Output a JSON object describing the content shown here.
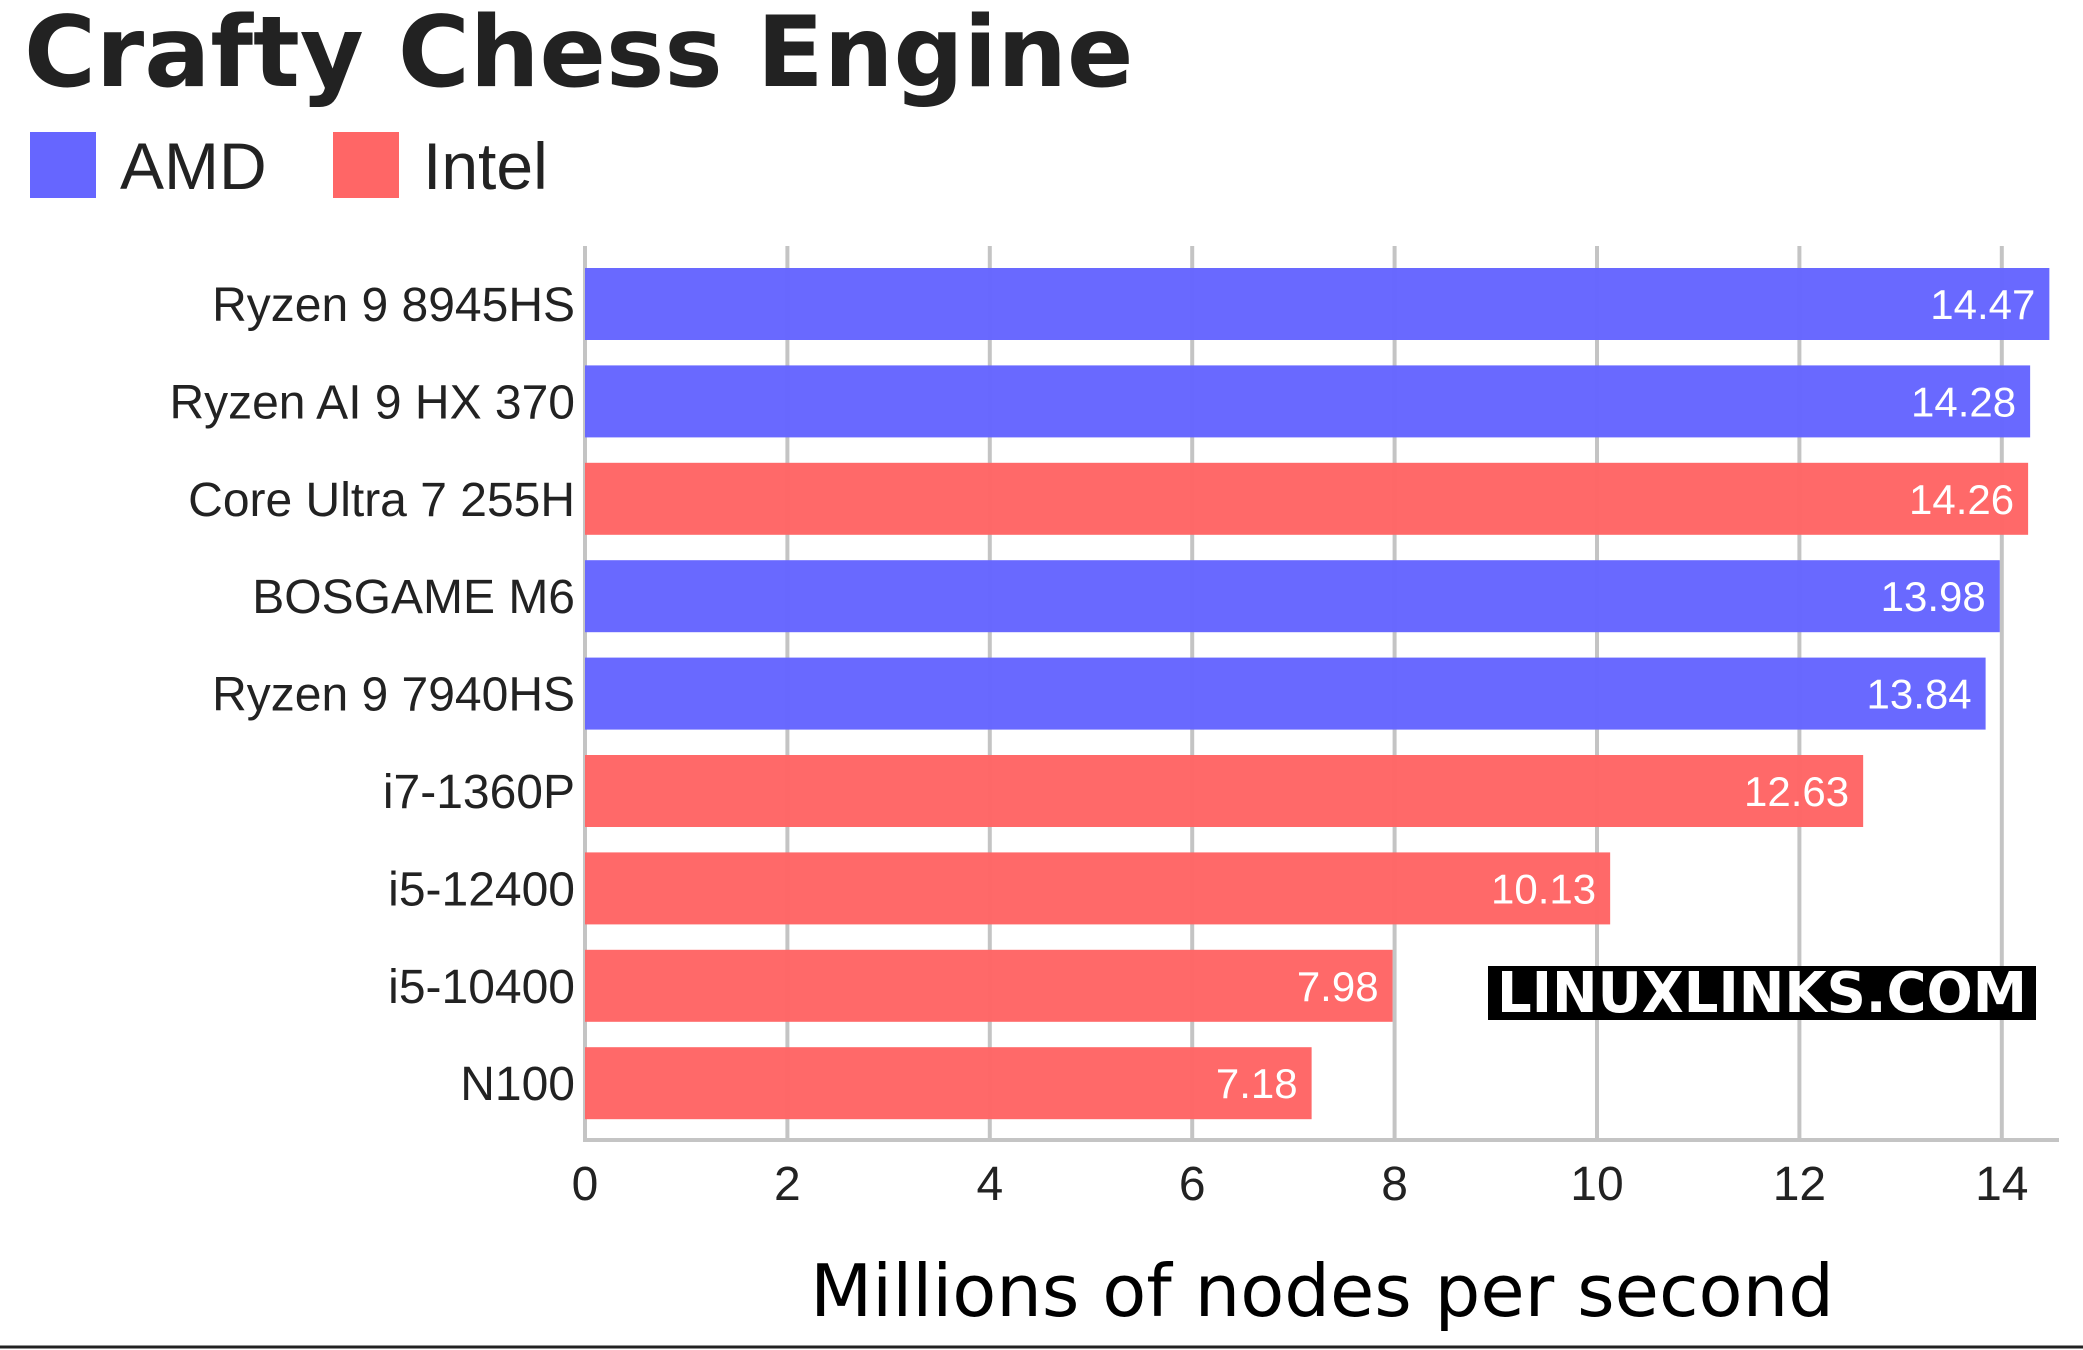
{
  "chart_data": {
    "type": "bar",
    "orientation": "horizontal",
    "title": "Crafty Chess Engine",
    "xlabel": "Millions of nodes per second",
    "ylabel": "",
    "xlim": [
      0,
      14.6
    ],
    "xticks": [
      0,
      2,
      4,
      6,
      8,
      10,
      12,
      14
    ],
    "grid": true,
    "legend_position": "top-left",
    "legend": [
      {
        "name": "AMD",
        "color": "#6666ff"
      },
      {
        "name": "Intel",
        "color": "#ff6666"
      }
    ],
    "categories": [
      "Ryzen 9 8945HS",
      "Ryzen AI 9 HX 370",
      "Core Ultra 7 255H",
      "BOSGAME M6",
      "Ryzen 9 7940HS",
      "i7-1360P",
      "i5-12400",
      "i5-10400",
      "N100"
    ],
    "values": [
      14.47,
      14.28,
      14.26,
      13.98,
      13.84,
      12.63,
      10.13,
      7.98,
      7.18
    ],
    "value_labels": [
      "14.47",
      "14.28",
      "14.26",
      "13.98",
      "13.84",
      "12.63",
      "10.13",
      "7.98",
      "7.18"
    ],
    "groups": [
      "AMD",
      "AMD",
      "Intel",
      "AMD",
      "AMD",
      "Intel",
      "Intel",
      "Intel",
      "Intel"
    ]
  },
  "watermark": "LINUXLINKS.COM"
}
